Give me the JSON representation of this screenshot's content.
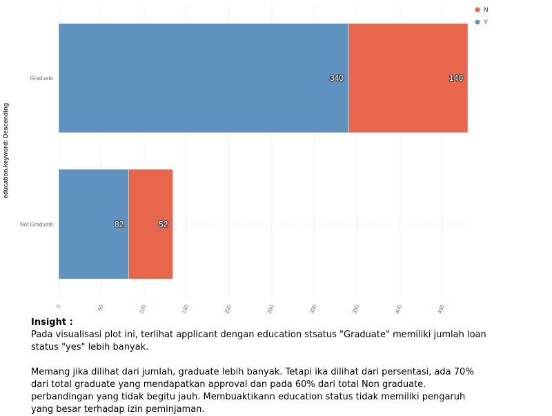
{
  "chart_data": {
    "type": "bar",
    "orientation": "horizontal",
    "stacked": true,
    "categories": [
      "Graduate",
      "Not Graduate"
    ],
    "series": [
      {
        "name": "Y",
        "values": [
          340,
          82
        ],
        "color": "#6092c0"
      },
      {
        "name": "N",
        "values": [
          140,
          52
        ],
        "color": "#e7664c"
      }
    ],
    "ylabel": "education.keyword: Descending",
    "xlabel": "",
    "xlim": [
      0,
      480
    ],
    "xticks": [
      0,
      50,
      100,
      150,
      200,
      250,
      300,
      350,
      400,
      450
    ],
    "grid": true,
    "legend_position": "top-right",
    "legend_order": [
      "N",
      "Y"
    ]
  },
  "insight": {
    "title": "Insight :",
    "paragraphs": [
      "Pada visualisasi plot ini, terlihat applicant dengan education stsatus \"Graduate\" memiliki jumlah loan status \"yes\" lebih banyak.",
      "Memang jika dilihat dari jumlah, graduate lebih banyak. Tetapi ika dilihat dari persentasi, ada 70% dari total graduate yang mendapatkan approval dan pada 60% dari total Non graduate. perbandingan yang tidak begitu jauh. Membuaktikann education status tidak memiliki pengaruh yang besar terhadap izin peminjaman."
    ]
  }
}
